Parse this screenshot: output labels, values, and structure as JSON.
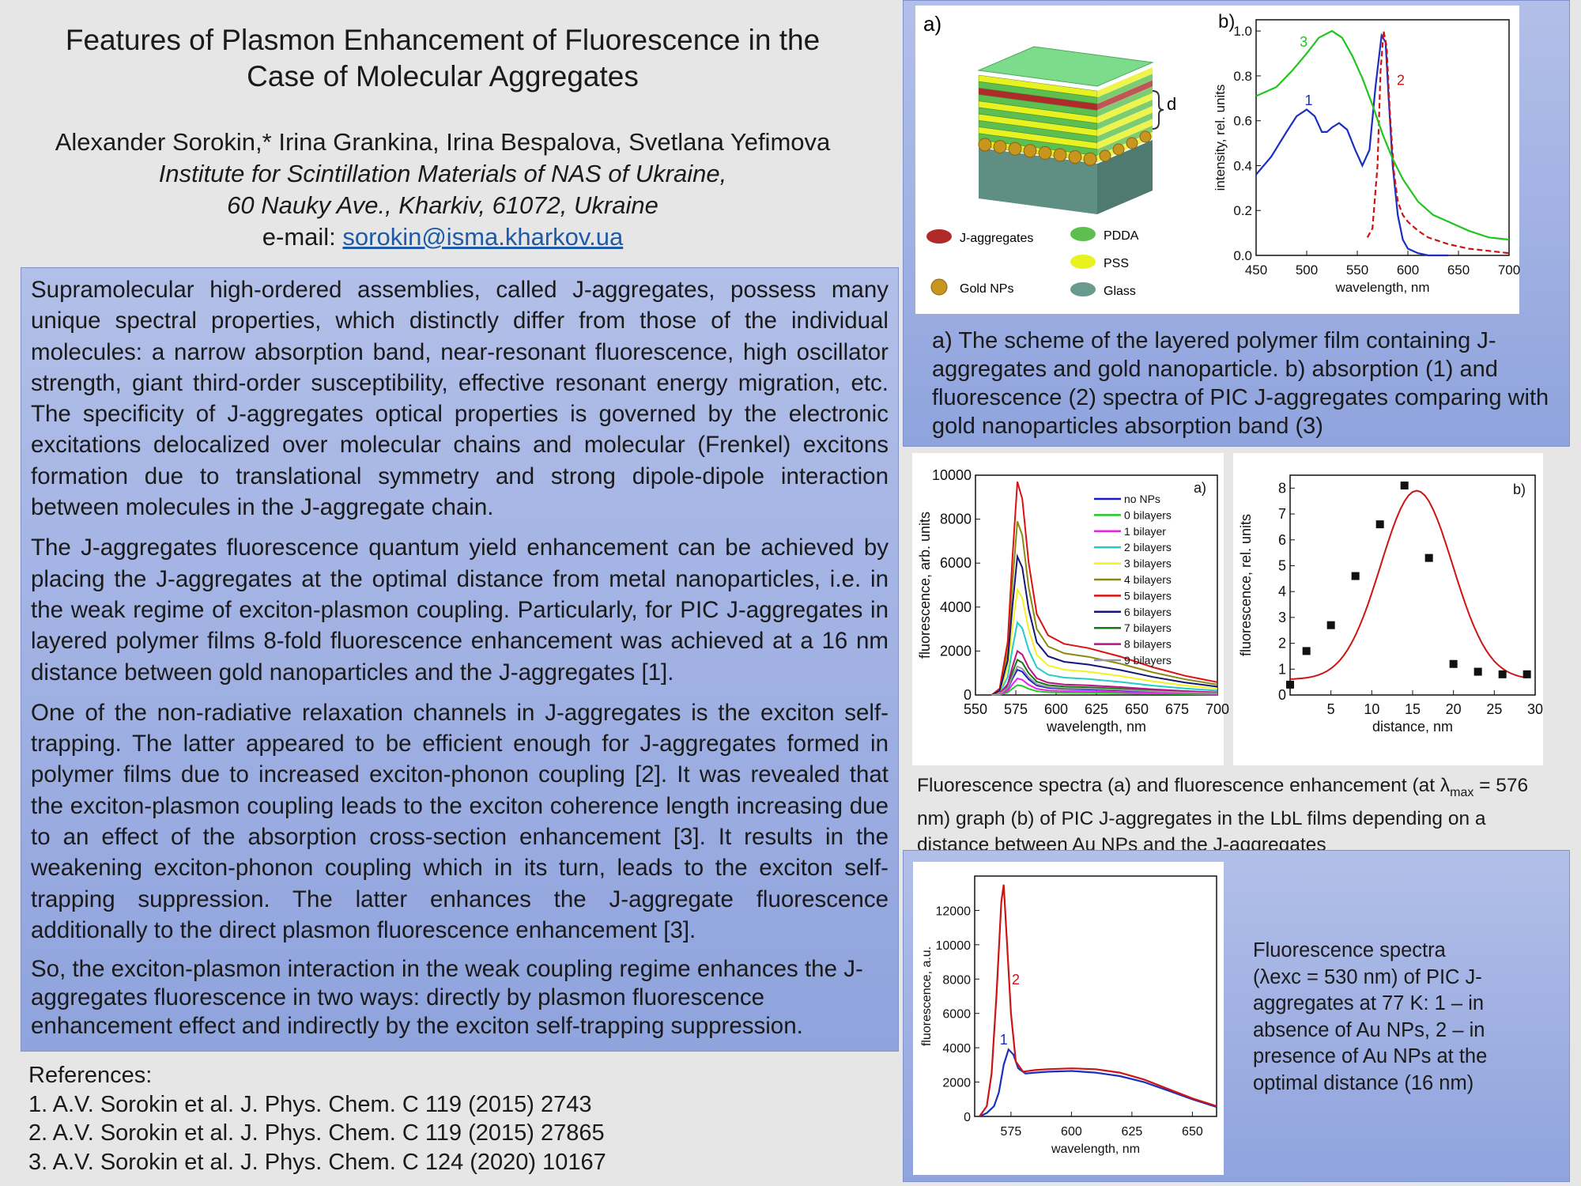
{
  "title": {
    "line1": "Features of Plasmon Enhancement of Fluorescence in the",
    "line2": "Case of Molecular Aggregates"
  },
  "authors": {
    "names": "Alexander Sorokin,* Irina Grankina, Irina Bespalova, Svetlana Yefimova",
    "institute": "Institute for Scintillation Materials of NAS of Ukraine,",
    "address": "60 Nauky Ave., Kharkiv, 61072, Ukraine",
    "email_label": "e-mail: ",
    "email": "sorokin@isma.kharkov.ua"
  },
  "abstract": {
    "p1": "Supramolecular high-ordered assemblies, called J-aggregates, possess many unique spectral properties, which distinctly differ from those of the individual molecules: a narrow absorption band, near-resonant fluorescence, high oscillator strength, giant third-order susceptibility, effective resonant energy migration, etc. The specificity of J-aggregates optical properties is governed by the electronic excitations delocalized over molecular chains and molecular (Frenkel) excitons formation due to translational symmetry and strong dipole-dipole interaction between molecules in the J-aggregate chain.",
    "p2": "The J-aggregates fluorescence quantum yield enhancement can be achieved by placing the J-aggregates at the optimal distance from metal nanoparticles, i.e. in the weak regime of exciton-plasmon coupling. Particularly, for PIC J-aggregates in layered polymer films 8-fold fluorescence enhancement was achieved at a 16 nm distance between gold nanoparticles and the J-aggregates [1].",
    "p3": "One of the non-radiative relaxation channels in J-aggregates is the exciton self-trapping. The latter appeared to be efficient enough for J-aggregates formed in polymer films due to increased exciton-phonon coupling [2]. It was revealed that the exciton-plasmon coupling leads to the exciton coherence length increasing due to an effect of the absorption cross-section enhancement [3]. It results in the weakening exciton-phonon coupling which in its turn, leads to the exciton self-trapping suppression. The latter enhances the J-aggregate fluorescence additionally to the direct plasmon fluorescence enhancement [3].",
    "p4": "So, the exciton-plasmon interaction in the weak coupling regime enhances the J-aggregates fluorescence in two ways: directly by plasmon fluorescence enhancement effect and indirectly by the exciton self-trapping suppression."
  },
  "references": {
    "heading": "References:",
    "items": [
      "1. A.V. Sorokin et al. J. Phys. Chem. C 119 (2015) 2743",
      "2. A.V. Sorokin et al. J. Phys. Chem. C 119 (2015) 27865",
      "3. A.V. Sorokin et al. J. Phys. Chem. C 124 (2020) 10167"
    ]
  },
  "figure1": {
    "panel_a_label": "a)",
    "panel_b_label": "b)",
    "d_label": "d",
    "legend": {
      "jagg": "J-aggregates",
      "gold": "Gold NPs",
      "pdda": "PDDA",
      "pss": "PSS",
      "glass": "Glass"
    },
    "colors": {
      "jagg": "#b02a2a",
      "gold": "#c8951e",
      "pdda": "#5cbf4e",
      "pss": "#e8f21e",
      "glass": "#6a9a8e"
    },
    "caption": "a) The scheme of the layered polymer film containing J-aggregates and gold nanoparticle. b) absorption (1) and fluorescence (2) spectra of PIC J-aggregates comparing with gold nanoparticles absorption band (3)"
  },
  "figure2": {
    "caption_part1": "Fluorescence spectra (a) and fluorescence enhancement (at λ",
    "caption_sub": "max",
    "caption_part2": " = 576 nm) graph (b) of PIC J-aggregates in the LbL films depending on a distance between Au NPs and the J-aggregates"
  },
  "figure3": {
    "caption": "Fluorescence spectra (λexc = 530 nm) of PIC J-aggregates at 77 K: 1 – in absence of Au NPs, 2 – in presence of Au NPs at the optimal distance (16 nm)"
  },
  "chart_data": [
    {
      "id": "fig1b",
      "type": "line",
      "panel_label": "b)",
      "xlabel": "wavelength, nm",
      "ylabel": "intensity, rel. units",
      "xlim": [
        450,
        700
      ],
      "ylim": [
        0,
        1.05
      ],
      "xticks": [
        450,
        500,
        550,
        600,
        650,
        700
      ],
      "yticks": [
        0.0,
        0.2,
        0.4,
        0.6,
        0.8,
        1.0
      ],
      "series": [
        {
          "name": "1",
          "color": "#1a2fc0",
          "dash": false,
          "x": [
            450,
            465,
            480,
            490,
            500,
            508,
            515,
            520,
            525,
            532,
            540,
            548,
            555,
            562,
            568,
            574,
            578,
            581,
            585,
            590,
            595,
            600,
            610,
            620,
            640
          ],
          "y": [
            0.36,
            0.44,
            0.55,
            0.62,
            0.65,
            0.62,
            0.55,
            0.55,
            0.57,
            0.59,
            0.56,
            0.47,
            0.4,
            0.47,
            0.75,
            0.98,
            0.95,
            0.7,
            0.4,
            0.18,
            0.07,
            0.03,
            0.01,
            0.0,
            0.0
          ]
        },
        {
          "name": "2",
          "color": "#cc1414",
          "dash": true,
          "x": [
            560,
            565,
            570,
            573,
            576,
            579,
            582,
            586,
            590,
            595,
            600,
            610,
            620,
            640,
            660,
            680,
            700
          ],
          "y": [
            0.08,
            0.12,
            0.4,
            0.82,
            1.0,
            0.93,
            0.65,
            0.38,
            0.24,
            0.18,
            0.15,
            0.11,
            0.08,
            0.05,
            0.03,
            0.02,
            0.01
          ]
        },
        {
          "name": "3",
          "color": "#22c41e",
          "dash": false,
          "x": [
            450,
            470,
            485,
            500,
            512,
            525,
            535,
            545,
            555,
            565,
            575,
            585,
            595,
            610,
            625,
            640,
            660,
            680,
            700
          ],
          "y": [
            0.71,
            0.75,
            0.82,
            0.9,
            0.97,
            1.0,
            0.97,
            0.89,
            0.79,
            0.67,
            0.54,
            0.43,
            0.34,
            0.24,
            0.18,
            0.15,
            0.11,
            0.08,
            0.07
          ]
        }
      ]
    },
    {
      "id": "fig2a",
      "type": "line",
      "panel_label": "a)",
      "xlabel": "wavelength, nm",
      "ylabel": "fluorescence, arb. units",
      "xlim": [
        550,
        700
      ],
      "ylim": [
        0,
        10000
      ],
      "xticks": [
        550,
        575,
        600,
        625,
        650,
        675,
        700
      ],
      "yticks": [
        0,
        2000,
        4000,
        6000,
        8000,
        10000
      ],
      "shape_x": [
        560,
        565,
        570,
        573,
        576,
        579,
        583,
        588,
        595,
        605,
        620,
        640,
        660,
        680,
        700
      ],
      "shape_base": [
        0,
        0.03,
        0.25,
        0.65,
        1.0,
        0.92,
        0.62,
        0.38,
        0.28,
        0.24,
        0.22,
        0.18,
        0.13,
        0.09,
        0.06
      ],
      "series": [
        {
          "name": "no NPs",
          "color": "#1a1acc",
          "peak": 1150
        },
        {
          "name": "0 bilayers",
          "color": "#22cc22",
          "peak": 450
        },
        {
          "name": "1 bilayer",
          "color": "#ee22ee",
          "peak": 750
        },
        {
          "name": "2 bilayers",
          "color": "#22cccc",
          "peak": 3300
        },
        {
          "name": "3 bilayers",
          "color": "#f2f222",
          "peak": 4800
        },
        {
          "name": "4 bilayers",
          "color": "#8a8a10",
          "peak": 7900
        },
        {
          "name": "5 bilayers",
          "color": "#dd1111",
          "peak": 9700
        },
        {
          "name": "6 bilayers",
          "color": "#15157a",
          "peak": 6300
        },
        {
          "name": "7 bilayers",
          "color": "#157a15",
          "peak": 1600
        },
        {
          "name": "8 bilayers",
          "color": "#bb1188",
          "peak": 2000
        },
        {
          "name": "9 bilayers",
          "color": "#999999",
          "peak": 1300
        }
      ]
    },
    {
      "id": "fig2b",
      "type": "scatter",
      "panel_label": "b)",
      "xlabel": "distance, nm",
      "ylabel": "fluorescence, rel. units",
      "xlim": [
        0,
        30
      ],
      "ylim": [
        0,
        8.5
      ],
      "xticks": [
        5,
        10,
        15,
        20,
        25,
        30
      ],
      "yticks": [
        0,
        1,
        2,
        3,
        4,
        5,
        6,
        7,
        8
      ],
      "points": {
        "x": [
          0,
          2,
          5,
          8,
          11,
          14,
          17,
          20,
          23,
          26,
          29
        ],
        "y": [
          0.4,
          1.7,
          2.7,
          4.6,
          6.6,
          8.1,
          5.3,
          1.2,
          0.9,
          0.8,
          0.8
        ]
      },
      "fit": {
        "name": "fit",
        "color": "#cc1414",
        "peak": 7.9,
        "center": 15.5,
        "width": 4.4,
        "baseline": 0.6
      }
    },
    {
      "id": "fig3",
      "type": "line",
      "xlabel": "wavelength, nm",
      "ylabel": "fluorescence, a.u.",
      "xlim": [
        560,
        660
      ],
      "ylim": [
        0,
        14000
      ],
      "xticks": [
        575,
        600,
        625,
        650
      ],
      "yticks": [
        0,
        2000,
        4000,
        6000,
        8000,
        10000,
        12000
      ],
      "series": [
        {
          "name": "1",
          "color": "#1a2fc0",
          "x": [
            562,
            565,
            568,
            570,
            572,
            574,
            576,
            578,
            581,
            585,
            590,
            600,
            610,
            620,
            630,
            640,
            650,
            660
          ],
          "y": [
            0,
            200,
            600,
            1400,
            3000,
            3900,
            3600,
            2800,
            2500,
            2550,
            2600,
            2650,
            2550,
            2350,
            2000,
            1500,
            1000,
            550
          ]
        },
        {
          "name": "2",
          "color": "#cc1414",
          "x": [
            562,
            565,
            567,
            569,
            571,
            572,
            573,
            575,
            577,
            580,
            585,
            590,
            600,
            610,
            620,
            630,
            640,
            650,
            660
          ],
          "y": [
            0,
            600,
            2500,
            7000,
            12500,
            13500,
            11000,
            6000,
            3200,
            2600,
            2700,
            2750,
            2800,
            2750,
            2550,
            2150,
            1600,
            1050,
            600
          ]
        }
      ]
    }
  ]
}
